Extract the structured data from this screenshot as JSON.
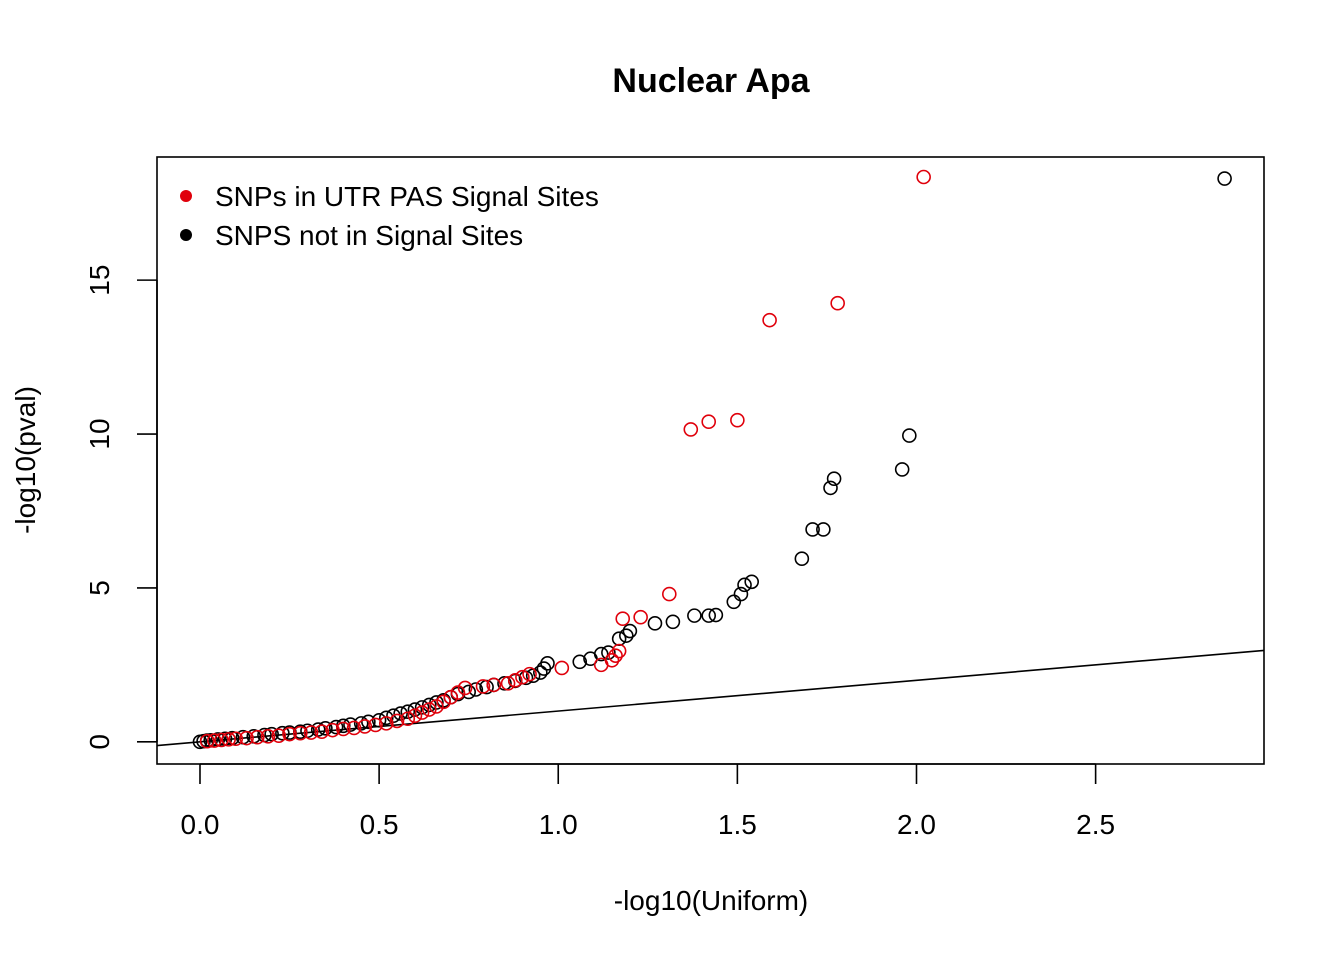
{
  "chart_data": {
    "type": "scatter",
    "title": "Nuclear Apa",
    "xlabel": "-log10(Uniform)",
    "ylabel": "-log10(pval)",
    "xlim": [
      -0.12,
      2.97
    ],
    "ylim": [
      -0.72,
      19.0
    ],
    "x_ticks": [
      0.0,
      0.5,
      1.0,
      1.5,
      2.0,
      2.5
    ],
    "x_tick_labels": [
      "0.0",
      "0.5",
      "1.0",
      "1.5",
      "2.0",
      "2.5"
    ],
    "y_ticks": [
      0,
      5,
      10,
      15
    ],
    "y_tick_labels": [
      "0",
      "5",
      "10",
      "15"
    ],
    "reference_line": {
      "intercept": 0,
      "slope": 1
    },
    "legend": {
      "position": "top-left",
      "entries": [
        {
          "label": "SNPs in UTR PAS Signal Sites",
          "color": "#e0000b"
        },
        {
          "label": "SNPS not in Signal Sites",
          "color": "#000000"
        }
      ]
    },
    "series": [
      {
        "name": "SNPS not in Signal Sites",
        "color": "#000000",
        "x": [
          0.0,
          0.01,
          0.02,
          0.03,
          0.05,
          0.07,
          0.09,
          0.12,
          0.15,
          0.18,
          0.2,
          0.23,
          0.25,
          0.28,
          0.3,
          0.33,
          0.35,
          0.38,
          0.4,
          0.42,
          0.45,
          0.47,
          0.5,
          0.52,
          0.54,
          0.56,
          0.58,
          0.6,
          0.62,
          0.64,
          0.66,
          0.68,
          0.7,
          0.72,
          0.75,
          0.77,
          0.8,
          0.82,
          0.85,
          0.88,
          0.91,
          0.93,
          0.95,
          0.96,
          0.97,
          1.06,
          1.09,
          1.12,
          1.14,
          1.17,
          1.19,
          1.2,
          1.27,
          1.32,
          1.38,
          1.42,
          1.44,
          1.49,
          1.51,
          1.52,
          1.54,
          1.68,
          1.71,
          1.74,
          1.76,
          1.77,
          1.96,
          1.98,
          2.86
        ],
        "y": [
          0.0,
          0.02,
          0.04,
          0.05,
          0.08,
          0.1,
          0.12,
          0.15,
          0.18,
          0.22,
          0.25,
          0.28,
          0.3,
          0.33,
          0.36,
          0.4,
          0.44,
          0.48,
          0.52,
          0.56,
          0.6,
          0.65,
          0.7,
          0.78,
          0.85,
          0.92,
          0.98,
          1.05,
          1.12,
          1.2,
          1.28,
          1.35,
          1.45,
          1.55,
          1.62,
          1.7,
          1.78,
          1.85,
          1.9,
          1.98,
          2.08,
          2.15,
          2.25,
          2.38,
          2.55,
          2.6,
          2.7,
          2.85,
          2.9,
          3.35,
          3.45,
          3.6,
          3.85,
          3.9,
          4.1,
          4.1,
          4.12,
          4.55,
          4.8,
          5.1,
          5.2,
          5.95,
          6.9,
          6.9,
          8.25,
          8.55,
          8.85,
          9.95,
          18.3
        ]
      },
      {
        "name": "SNPs in UTR PAS Signal Sites",
        "color": "#e0000b",
        "x": [
          0.02,
          0.04,
          0.06,
          0.08,
          0.1,
          0.13,
          0.16,
          0.19,
          0.22,
          0.25,
          0.28,
          0.31,
          0.34,
          0.37,
          0.4,
          0.43,
          0.46,
          0.49,
          0.52,
          0.55,
          0.58,
          0.6,
          0.62,
          0.64,
          0.66,
          0.68,
          0.7,
          0.72,
          0.74,
          0.79,
          0.82,
          0.86,
          0.88,
          0.9,
          0.92,
          1.01,
          1.12,
          1.15,
          1.16,
          1.17,
          1.18,
          1.23,
          1.31,
          1.37,
          1.42,
          1.5,
          1.59,
          1.78,
          2.02
        ],
        "y": [
          0.02,
          0.04,
          0.06,
          0.08,
          0.1,
          0.12,
          0.15,
          0.18,
          0.2,
          0.25,
          0.28,
          0.3,
          0.33,
          0.38,
          0.42,
          0.45,
          0.5,
          0.55,
          0.6,
          0.68,
          0.75,
          0.85,
          0.95,
          1.05,
          1.15,
          1.3,
          1.45,
          1.6,
          1.75,
          1.8,
          1.85,
          1.9,
          2.0,
          2.1,
          2.2,
          2.4,
          2.5,
          2.65,
          2.8,
          2.95,
          4.0,
          4.05,
          4.8,
          10.15,
          10.4,
          10.45,
          13.7,
          14.25,
          18.35
        ]
      }
    ]
  }
}
